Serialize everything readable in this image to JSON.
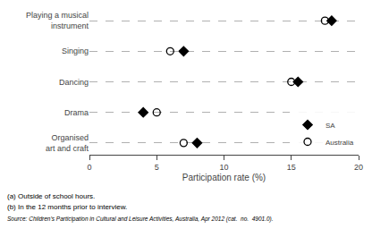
{
  "chart_data": {
    "type": "dot",
    "orientation": "horizontal",
    "categories": [
      "Playing a musical\ninstrument",
      "Singing",
      "Dancing",
      "Drama",
      "Organised\nart and craft"
    ],
    "series": [
      {
        "name": "SA",
        "color": "#000000",
        "marker": "diamond",
        "values": [
          18.0,
          7.0,
          15.5,
          4.0,
          8.0
        ]
      },
      {
        "name": "Australia",
        "color": "#000000",
        "marker": "circle-open",
        "values": [
          17.5,
          6.0,
          15.0,
          5.0,
          7.0
        ]
      }
    ],
    "xlabel": "Participation rate (%)",
    "xlim": [
      0,
      20
    ],
    "xticks": [
      0,
      5,
      10,
      15,
      20
    ],
    "grid": "y",
    "legend": "lower right",
    "annotations": [
      "(a) Outside of school hours.",
      "(b) In the 12 months prior to interview.",
      "Source: Children’s Participation in Cultural and Leisure Activities, Australia, Apr 2012 (cat.  no.  4901.0)."
    ]
  }
}
